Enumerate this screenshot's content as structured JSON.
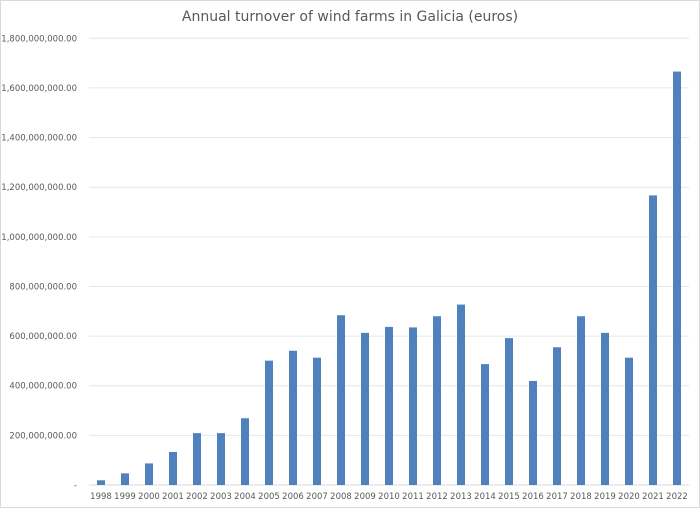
{
  "chart_data": {
    "type": "bar",
    "title": "Annual turnover of wind farms in Galicia (euros)",
    "xlabel": "",
    "ylabel": "",
    "categories": [
      "1998",
      "1999",
      "2000",
      "2001",
      "2002",
      "2003",
      "2004",
      "2005",
      "2006",
      "2007",
      "2008",
      "2009",
      "2010",
      "2011",
      "2012",
      "2013",
      "2014",
      "2015",
      "2016",
      "2017",
      "2018",
      "2019",
      "2020",
      "2021",
      "2022"
    ],
    "values": [
      19000000,
      47000000,
      87000000,
      133000000,
      209000000,
      209000000,
      269000000,
      501000000,
      541000000,
      513000000,
      684000000,
      613000000,
      637000000,
      635000000,
      680000000,
      727000000,
      487000000,
      592000000,
      419000000,
      555000000,
      680000000,
      613000000,
      513000000,
      1167000000,
      1666000000
    ],
    "ylim": [
      0,
      1800000000
    ],
    "yticks": [
      0,
      200000000,
      400000000,
      600000000,
      800000000,
      1000000000,
      1200000000,
      1400000000,
      1600000000,
      1800000000
    ],
    "ytick_labels": [
      "-",
      "200,000,000.00",
      "400,000,000.00",
      "600,000,000.00",
      "800,000,000.00",
      "1,000,000,000.00",
      "1,200,000,000.00",
      "1,400,000,000.00",
      "1,600,000,000.00",
      "1,800,000,000.00"
    ],
    "grid": true,
    "legend": "none",
    "bar_color": "#4f81bd"
  }
}
